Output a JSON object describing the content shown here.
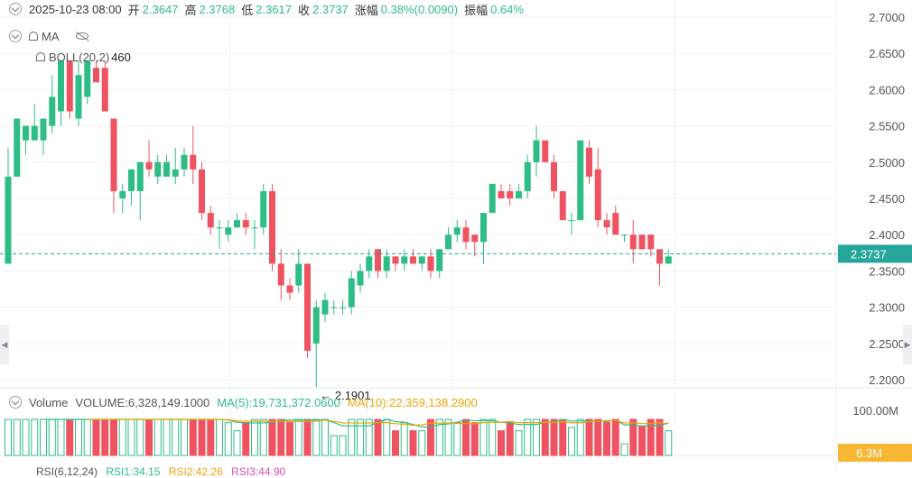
{
  "ohlc_bar": {
    "date": "2025-10-23 08:00",
    "open_label": "开",
    "open": "2.3647",
    "high_label": "高",
    "high": "2.3768",
    "low_label": "低",
    "low": "2.3617",
    "close_label": "收",
    "close": "2.3737",
    "change_label": "涨幅",
    "change": "0.38%(0.0090)",
    "amplitude_label": "振幅",
    "amplitude": "0.64%"
  },
  "indicators": {
    "ma": "MA",
    "boll": "BOLL(20,2)",
    "boll_overlap": "460"
  },
  "colors": {
    "up": "#2ebd85",
    "down": "#ef5361",
    "last_price_line": "#26a69a",
    "ma5": "#2ebd85",
    "ma10": "#f0a30a",
    "volume_badge": "#f7b733"
  },
  "chart_data": {
    "type": "candlestick",
    "y_ticks": [
      "2.7000",
      "2.6500",
      "2.6000",
      "2.5500",
      "2.5000",
      "2.4500",
      "2.4000",
      "2.3500",
      "2.3000",
      "2.2500",
      "2.2000"
    ],
    "ylim": [
      2.1765,
      2.7235
    ],
    "last_price": "2.3737",
    "low_annotation": "← 2.1901",
    "candles": [
      [
        2.36,
        2.48,
        2.52,
        2.36
      ],
      [
        2.48,
        2.56,
        2.56,
        2.48
      ],
      [
        2.53,
        2.55,
        2.55,
        2.51
      ],
      [
        2.53,
        2.55,
        2.58,
        2.53
      ],
      [
        2.53,
        2.56,
        2.56,
        2.51
      ],
      [
        2.55,
        2.59,
        2.62,
        2.54
      ],
      [
        2.57,
        2.64,
        2.64,
        2.55
      ],
      [
        2.64,
        2.57,
        2.64,
        2.56
      ],
      [
        2.56,
        2.62,
        2.64,
        2.55
      ],
      [
        2.59,
        2.64,
        2.64,
        2.58
      ],
      [
        2.63,
        2.61,
        2.64,
        2.61
      ],
      [
        2.63,
        2.57,
        2.64,
        2.57
      ],
      [
        2.56,
        2.46,
        2.56,
        2.43
      ],
      [
        2.45,
        2.46,
        2.47,
        2.43
      ],
      [
        2.46,
        2.49,
        2.49,
        2.44
      ],
      [
        2.46,
        2.5,
        2.5,
        2.42
      ],
      [
        2.5,
        2.49,
        2.53,
        2.48
      ],
      [
        2.48,
        2.5,
        2.51,
        2.47
      ],
      [
        2.48,
        2.5,
        2.51,
        2.48
      ],
      [
        2.48,
        2.49,
        2.52,
        2.47
      ],
      [
        2.49,
        2.51,
        2.52,
        2.48
      ],
      [
        2.51,
        2.49,
        2.55,
        2.47
      ],
      [
        2.49,
        2.43,
        2.5,
        2.42
      ],
      [
        2.43,
        2.41,
        2.44,
        2.4
      ],
      [
        2.41,
        2.41,
        2.42,
        2.38
      ],
      [
        2.4,
        2.41,
        2.42,
        2.39
      ],
      [
        2.41,
        2.42,
        2.43,
        2.41
      ],
      [
        2.42,
        2.41,
        2.43,
        2.4
      ],
      [
        2.41,
        2.41,
        2.42,
        2.38
      ],
      [
        2.41,
        2.46,
        2.47,
        2.4
      ],
      [
        2.46,
        2.36,
        2.47,
        2.35
      ],
      [
        2.36,
        2.33,
        2.38,
        2.31
      ],
      [
        2.33,
        2.32,
        2.34,
        2.31
      ],
      [
        2.33,
        2.36,
        2.38,
        2.32
      ],
      [
        2.36,
        2.24,
        2.36,
        2.23
      ],
      [
        2.25,
        2.3,
        2.31,
        2.19
      ],
      [
        2.29,
        2.31,
        2.32,
        2.28
      ],
      [
        2.3,
        2.3,
        2.31,
        2.29
      ],
      [
        2.3,
        2.3,
        2.31,
        2.29
      ],
      [
        2.3,
        2.34,
        2.35,
        2.29
      ],
      [
        2.33,
        2.35,
        2.36,
        2.32
      ],
      [
        2.35,
        2.37,
        2.38,
        2.34
      ],
      [
        2.38,
        2.35,
        2.38,
        2.34
      ],
      [
        2.35,
        2.37,
        2.38,
        2.34
      ],
      [
        2.37,
        2.36,
        2.37,
        2.35
      ],
      [
        2.36,
        2.37,
        2.38,
        2.35
      ],
      [
        2.37,
        2.36,
        2.38,
        2.36
      ],
      [
        2.36,
        2.37,
        2.37,
        2.35
      ],
      [
        2.37,
        2.35,
        2.38,
        2.34
      ],
      [
        2.35,
        2.38,
        2.38,
        2.34
      ],
      [
        2.38,
        2.4,
        2.41,
        2.38
      ],
      [
        2.4,
        2.41,
        2.42,
        2.39
      ],
      [
        2.41,
        2.39,
        2.42,
        2.38
      ],
      [
        2.4,
        2.39,
        2.4,
        2.37
      ],
      [
        2.39,
        2.43,
        2.43,
        2.36
      ],
      [
        2.43,
        2.47,
        2.47,
        2.43
      ],
      [
        2.46,
        2.45,
        2.47,
        2.45
      ],
      [
        2.46,
        2.45,
        2.47,
        2.44
      ],
      [
        2.45,
        2.46,
        2.47,
        2.45
      ],
      [
        2.46,
        2.5,
        2.51,
        2.45
      ],
      [
        2.5,
        2.53,
        2.55,
        2.48
      ],
      [
        2.53,
        2.5,
        2.53,
        2.5
      ],
      [
        2.5,
        2.46,
        2.51,
        2.45
      ],
      [
        2.46,
        2.42,
        2.46,
        2.42
      ],
      [
        2.42,
        2.42,
        2.43,
        2.4
      ],
      [
        2.42,
        2.53,
        2.53,
        2.42
      ],
      [
        2.52,
        2.48,
        2.53,
        2.47
      ],
      [
        2.49,
        2.42,
        2.52,
        2.41
      ],
      [
        2.42,
        2.41,
        2.43,
        2.4
      ],
      [
        2.43,
        2.4,
        2.44,
        2.4
      ],
      [
        2.4,
        2.4,
        2.4,
        2.39
      ],
      [
        2.4,
        2.38,
        2.42,
        2.36
      ],
      [
        2.4,
        2.38,
        2.4,
        2.38
      ],
      [
        2.4,
        2.38,
        2.4,
        2.37
      ],
      [
        2.38,
        2.36,
        2.38,
        2.33
      ],
      [
        2.36,
        2.37,
        2.38,
        2.36
      ]
    ]
  },
  "volume": {
    "title": "Volume",
    "volume_text": "VOLUME:6,328,149.1000",
    "ma5_text": "MA(5):19,731,372.0600",
    "ma10_text": "MA(10):22,359,138.2900",
    "axis_top": "100.00M",
    "badge": "6.3M"
  },
  "rsi": {
    "label": "RSI(6,12,24)",
    "rsi1": "RSI1:34.15",
    "rsi2": "RSI2:42.26",
    "rsi3": "RSI3:44.90"
  }
}
